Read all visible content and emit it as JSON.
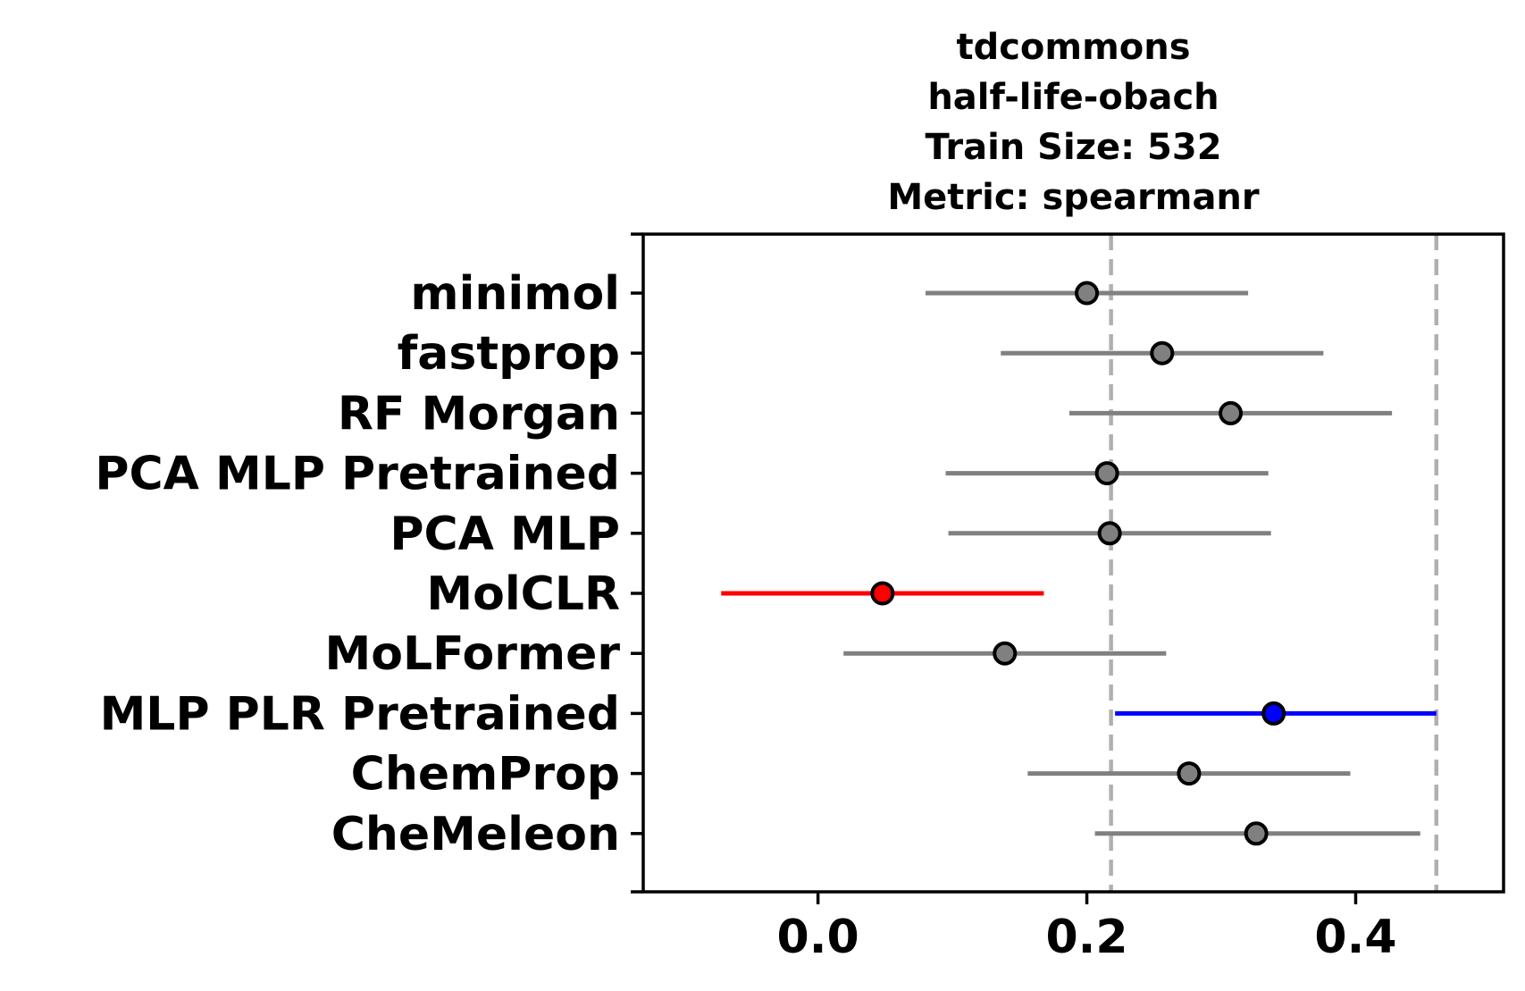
{
  "chart_data": {
    "type": "scatter",
    "title_lines": [
      "tdcommons",
      "half-life-obach",
      "Train Size: 532",
      "Metric: spearmanr"
    ],
    "xlabel": "",
    "ylabel": "",
    "xlim": [
      -0.13,
      0.51
    ],
    "x_ticks": [
      0.0,
      0.2,
      0.4
    ],
    "x_tick_labels": [
      "0.0",
      "0.2",
      "0.4"
    ],
    "reference_lines": [
      0.218,
      0.46
    ],
    "reference_line_color": "#b0b0b0",
    "grid": false,
    "models": [
      {
        "name": "minimol",
        "value": 0.2,
        "low": 0.08,
        "high": 0.32,
        "color": "#808080"
      },
      {
        "name": "fastprop",
        "value": 0.256,
        "low": 0.136,
        "high": 0.376,
        "color": "#808080"
      },
      {
        "name": "RF Morgan",
        "value": 0.307,
        "low": 0.187,
        "high": 0.427,
        "color": "#808080"
      },
      {
        "name": "PCA MLP Pretrained",
        "value": 0.215,
        "low": 0.095,
        "high": 0.335,
        "color": "#808080"
      },
      {
        "name": "PCA MLP",
        "value": 0.217,
        "low": 0.097,
        "high": 0.337,
        "color": "#808080"
      },
      {
        "name": "MolCLR",
        "value": 0.048,
        "low": -0.072,
        "high": 0.168,
        "color": "#ff0000"
      },
      {
        "name": "MoLFormer",
        "value": 0.139,
        "low": 0.019,
        "high": 0.259,
        "color": "#808080"
      },
      {
        "name": "MLP PLR Pretrained",
        "value": 0.339,
        "low": 0.221,
        "high": 0.46,
        "color": "#0000ff"
      },
      {
        "name": "ChemProp",
        "value": 0.276,
        "low": 0.156,
        "high": 0.396,
        "color": "#808080"
      },
      {
        "name": "CheMeleon",
        "value": 0.326,
        "low": 0.206,
        "high": 0.448,
        "color": "#808080"
      }
    ]
  }
}
